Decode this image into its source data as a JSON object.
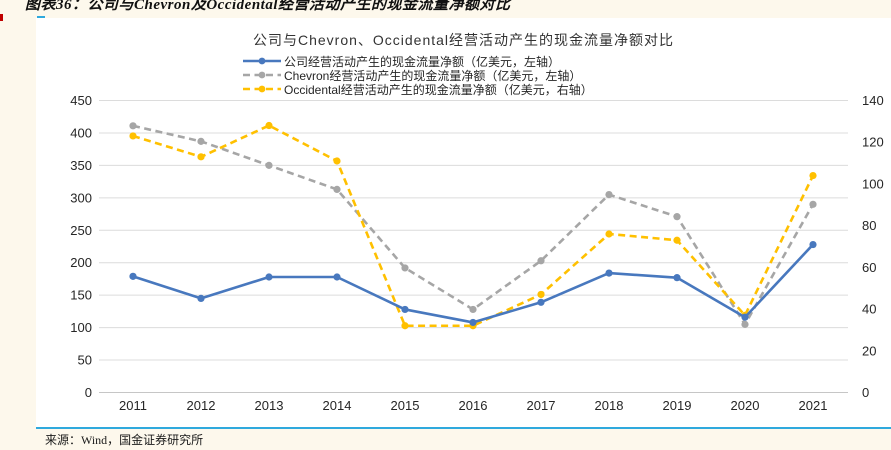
{
  "page": {
    "background_color": "#FDF8EC",
    "accent_rule_color": "#2FA9DD",
    "left_tick_color": "#C00000"
  },
  "header": {
    "caption": "图表36：公司与Chevron及Occidental经营活动产生的现金流量净额对比"
  },
  "footer": {
    "source": "来源：Wind，国金证券研究所"
  },
  "chart_data": {
    "type": "line",
    "title": "公司与Chevron、Occidental经营活动产生的现金流量净额对比",
    "categories": [
      "2011",
      "2012",
      "2013",
      "2014",
      "2015",
      "2016",
      "2017",
      "2018",
      "2019",
      "2020",
      "2021"
    ],
    "series": [
      {
        "name": "公司经营活动产生的现金流量净额（亿美元，左轴）",
        "axis": "left",
        "color": "#4878BE",
        "line_style": "solid",
        "values": [
          179,
          145,
          178,
          178,
          128,
          108,
          139,
          184,
          177,
          116,
          228
        ]
      },
      {
        "name": "Chevron经营活动产生的现金流量净额（亿美元，左轴）",
        "axis": "left",
        "color": "#A6A6A6",
        "line_style": "dashed",
        "values": [
          411,
          387,
          350,
          313,
          192,
          128,
          203,
          305,
          271,
          105,
          290
        ]
      },
      {
        "name": "Occidental经营活动产生的现金流量净额（亿美元，右轴）",
        "axis": "right",
        "color": "#FFC000",
        "line_style": "dashed",
        "values": [
          123,
          113,
          128,
          111,
          32,
          32,
          47,
          76,
          73,
          37,
          104
        ]
      }
    ],
    "left_axis": {
      "min": 0,
      "max": 450,
      "step": 50
    },
    "right_axis": {
      "min": 0,
      "max": 140,
      "step": 20
    },
    "grid": true,
    "legend_position": "top",
    "gridline_color": "#DCDCDC",
    "zeroline_color": "#C6C6C6",
    "axis_label_color": "#262626"
  }
}
